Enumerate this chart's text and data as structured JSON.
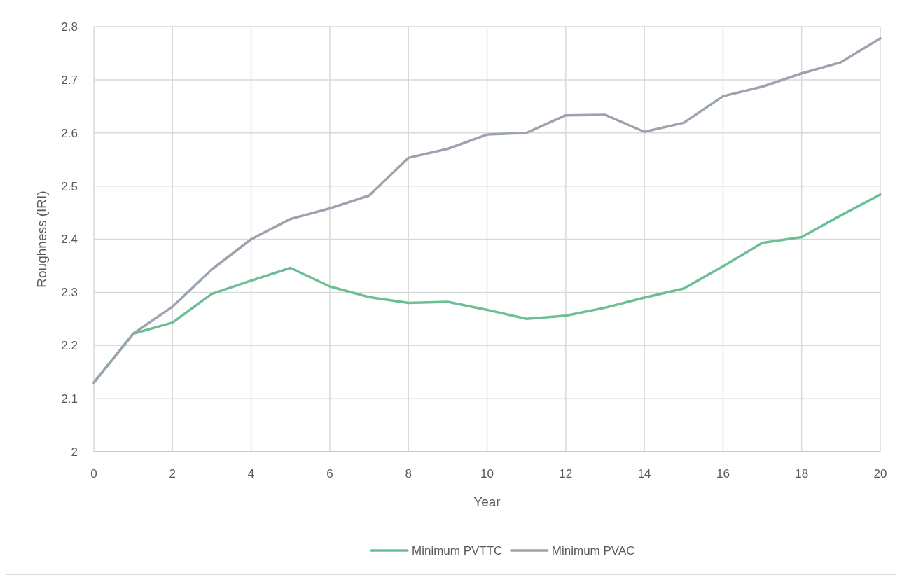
{
  "chart_data": {
    "type": "line",
    "xlabel": "Year",
    "ylabel": "Roughness (IRI)",
    "x": [
      0,
      1,
      2,
      3,
      4,
      5,
      6,
      7,
      8,
      9,
      10,
      11,
      12,
      13,
      14,
      15,
      16,
      17,
      18,
      19,
      20
    ],
    "series": [
      {
        "name": "Minimum PVTTC",
        "color": "#6cbf94",
        "values": [
          2.13,
          2.222,
          2.243,
          2.297,
          2.322,
          2.346,
          2.311,
          2.291,
          2.28,
          2.282,
          2.267,
          2.25,
          2.256,
          2.271,
          2.29,
          2.307,
          2.349,
          2.393,
          2.404,
          2.445,
          2.484
        ]
      },
      {
        "name": "Minimum PVAC",
        "color": "#9aa3ae",
        "values": [
          2.13,
          2.222,
          2.273,
          2.343,
          2.4,
          2.438,
          2.458,
          2.482,
          2.553,
          2.57,
          2.597,
          2.6,
          2.633,
          2.634,
          2.602,
          2.619,
          2.669,
          2.687,
          2.712,
          2.733,
          2.778
        ]
      }
    ],
    "xlim": [
      0,
      20
    ],
    "xticks": [
      0,
      2,
      4,
      6,
      8,
      10,
      12,
      14,
      16,
      18,
      20
    ],
    "ylim": [
      2,
      2.8
    ],
    "yticks": [
      2,
      2.1,
      2.2,
      2.3,
      2.4,
      2.5,
      2.6,
      2.7,
      2.8
    ],
    "grid": true,
    "legend": "bottom",
    "marker": "none",
    "line_style": "solid"
  }
}
